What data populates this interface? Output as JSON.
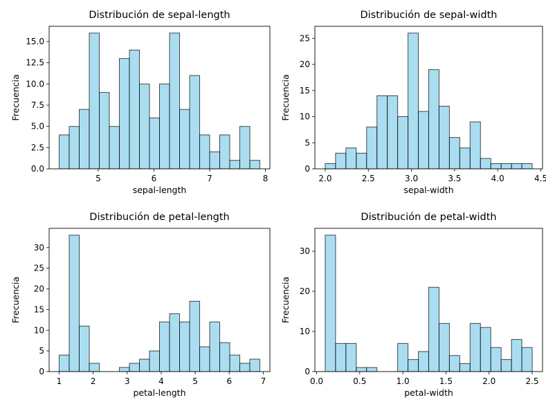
{
  "ylabel": "Frecuencia",
  "chart_data": [
    {
      "type": "bar",
      "title": "Distribución de sepal-length",
      "xlabel": "sepal-length",
      "ylabel": "Frecuencia",
      "bins_start": 4.3,
      "bin_width": 0.18,
      "values": [
        4,
        5,
        7,
        16,
        9,
        5,
        13,
        14,
        10,
        6,
        10,
        16,
        7,
        11,
        4,
        2,
        4,
        1,
        5,
        1
      ],
      "xlim": [
        4.12,
        8.08
      ],
      "ylim": [
        0,
        16.8
      ],
      "xticks": [
        5,
        6,
        7,
        8
      ],
      "xtick_labels": [
        "5",
        "6",
        "7",
        "8"
      ],
      "yticks": [
        0,
        2.5,
        5,
        7.5,
        10,
        12.5,
        15
      ],
      "ytick_labels": [
        "0.0",
        "2.5",
        "5.0",
        "7.5",
        "10.0",
        "12.5",
        "15.0"
      ]
    },
    {
      "type": "bar",
      "title": "Distribución de sepal-width",
      "xlabel": "sepal-width",
      "ylabel": "Frecuencia",
      "bins_start": 2.0,
      "bin_width": 0.12,
      "values": [
        1,
        3,
        4,
        3,
        8,
        14,
        14,
        10,
        26,
        11,
        19,
        12,
        6,
        4,
        9,
        2,
        1,
        1,
        1,
        1
      ],
      "xlim": [
        1.88,
        4.52
      ],
      "ylim": [
        0,
        27.3
      ],
      "xticks": [
        2.0,
        2.5,
        3.0,
        3.5,
        4.0,
        4.5
      ],
      "xtick_labels": [
        "2.0",
        "2.5",
        "3.0",
        "3.5",
        "4.0",
        "4.5"
      ],
      "yticks": [
        0,
        5,
        10,
        15,
        20,
        25
      ],
      "ytick_labels": [
        "0",
        "5",
        "10",
        "15",
        "20",
        "25"
      ]
    },
    {
      "type": "bar",
      "title": "Distribución de petal-length",
      "xlabel": "petal-length",
      "ylabel": "Frecuencia",
      "bins_start": 1.0,
      "bin_width": 0.295,
      "values": [
        4,
        33,
        11,
        2,
        0,
        0,
        1,
        2,
        3,
        5,
        12,
        14,
        12,
        17,
        6,
        12,
        7,
        4,
        2,
        3
      ],
      "xlim": [
        0.705,
        7.195
      ],
      "ylim": [
        0,
        34.65
      ],
      "xticks": [
        1,
        2,
        3,
        4,
        5,
        6,
        7
      ],
      "xtick_labels": [
        "1",
        "2",
        "3",
        "4",
        "5",
        "6",
        "7"
      ],
      "yticks": [
        0,
        5,
        10,
        15,
        20,
        25,
        30
      ],
      "ytick_labels": [
        "0",
        "5",
        "10",
        "15",
        "20",
        "25",
        "30"
      ]
    },
    {
      "type": "bar",
      "title": "Distribución de petal-width",
      "xlabel": "petal-width",
      "ylabel": "Frecuencia",
      "bins_start": 0.1,
      "bin_width": 0.12,
      "values": [
        34,
        7,
        7,
        1,
        1,
        0,
        0,
        7,
        3,
        5,
        21,
        12,
        4,
        2,
        12,
        11,
        6,
        3,
        8,
        6
      ],
      "xlim": [
        -0.02,
        2.62
      ],
      "ylim": [
        0,
        35.7
      ],
      "xticks": [
        0,
        0.5,
        1.0,
        1.5,
        2.0,
        2.5
      ],
      "xtick_labels": [
        "0.0",
        "0.5",
        "1.0",
        "1.5",
        "2.0",
        "2.5"
      ],
      "yticks": [
        0,
        10,
        20,
        30
      ],
      "ytick_labels": [
        "0",
        "10",
        "20",
        "30"
      ]
    }
  ]
}
